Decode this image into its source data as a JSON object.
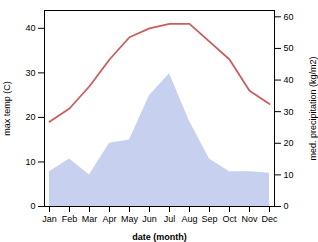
{
  "chart_data": {
    "type": "line",
    "xlabel": "date (month)",
    "ylabel": "max temp (C)",
    "y2label": "med. precipitation (kg/m2)",
    "categories": [
      "Jan",
      "Feb",
      "Mar",
      "Apr",
      "May",
      "Jun",
      "Jul",
      "Aug",
      "Sep",
      "Oct",
      "Nov",
      "Dec"
    ],
    "series": [
      {
        "type": "area",
        "axis": "y2",
        "color": "#c8d0f0",
        "values": [
          11,
          15,
          10,
          20,
          21,
          35,
          42,
          27,
          15,
          11,
          11,
          10.5
        ]
      },
      {
        "type": "line",
        "color": "#cd5c5c",
        "values": [
          19,
          22,
          27,
          33,
          38,
          40,
          41,
          41,
          37,
          33,
          26,
          23
        ]
      }
    ],
    "ylim": [
      0,
      44
    ],
    "yticks": [
      0,
      10,
      20,
      30,
      40
    ],
    "y2lim": [
      0,
      62
    ],
    "y2ticks": [
      0,
      10,
      20,
      30,
      40,
      50,
      60
    ],
    "grid": false
  }
}
